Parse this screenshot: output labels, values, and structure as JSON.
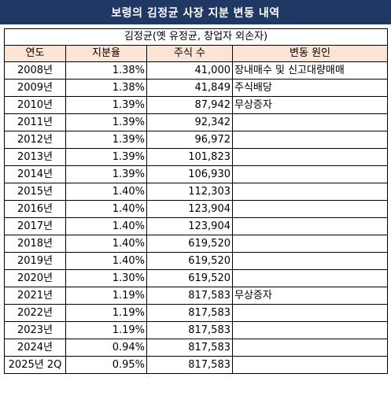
{
  "title": "보령의 김정균 사장 지분 변동 내역",
  "subtitle": "김정균(옛 유정균, 창업자 외손자)",
  "columns": [
    "연도",
    "지분율",
    "주식 수",
    "변동 원인"
  ],
  "rows": [
    {
      "year": "2008년",
      "pct": "1.38%",
      "shares": "41,000",
      "reason": "장내매수 및 신고대량매매"
    },
    {
      "year": "2009년",
      "pct": "1.38%",
      "shares": "41,849",
      "reason": "주식배당"
    },
    {
      "year": "2010년",
      "pct": "1.39%",
      "shares": "87,942",
      "reason": "무상증자"
    },
    {
      "year": "2011년",
      "pct": "1.39%",
      "shares": "92,342",
      "reason": ""
    },
    {
      "year": "2012년",
      "pct": "1.39%",
      "shares": "96,972",
      "reason": ""
    },
    {
      "year": "2013년",
      "pct": "1.39%",
      "shares": "101,823",
      "reason": ""
    },
    {
      "year": "2014년",
      "pct": "1.39%",
      "shares": "106,930",
      "reason": ""
    },
    {
      "year": "2015년",
      "pct": "1.40%",
      "shares": "112,303",
      "reason": ""
    },
    {
      "year": "2016년",
      "pct": "1.40%",
      "shares": "123,904",
      "reason": ""
    },
    {
      "year": "2017년",
      "pct": "1.40%",
      "shares": "123,904",
      "reason": ""
    },
    {
      "year": "2018년",
      "pct": "1.40%",
      "shares": "619,520",
      "reason": ""
    },
    {
      "year": "2019년",
      "pct": "1.40%",
      "shares": "619,520",
      "reason": ""
    },
    {
      "year": "2020년",
      "pct": "1.30%",
      "shares": "619,520",
      "reason": ""
    },
    {
      "year": "2021년",
      "pct": "1.19%",
      "shares": "817,583",
      "reason": "무상증자"
    },
    {
      "year": "2022년",
      "pct": "1.19%",
      "shares": "817,583",
      "reason": ""
    },
    {
      "year": "2023년",
      "pct": "1.19%",
      "shares": "817,583",
      "reason": ""
    },
    {
      "year": "2024년",
      "pct": "0.94%",
      "shares": "817,583",
      "reason": ""
    },
    {
      "year": "2025년 2Q",
      "pct": "0.95%",
      "shares": "817,583",
      "reason": ""
    }
  ]
}
